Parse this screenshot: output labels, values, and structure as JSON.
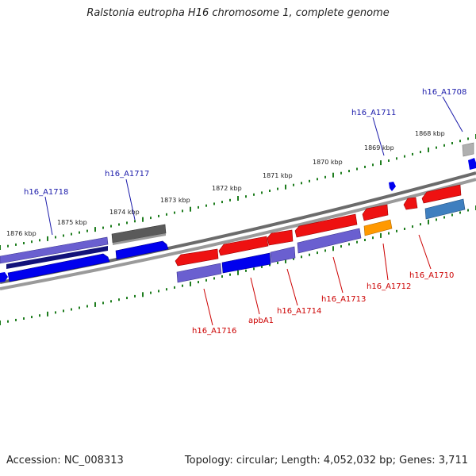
{
  "title": "Ralstonia eutropha H16 chromosome 1, complete genome",
  "footer": {
    "accession": "Accession: NC_008313",
    "summary": "Topology: circular; Length: 4,052,032 bp; Genes: 3,711"
  },
  "colors": {
    "background": "#ffffff",
    "backbone": "#888888",
    "tick": "#1e7d1e",
    "label_forward": "#1a1aaa",
    "label_reverse": "#cc0000",
    "red": "#ee1111",
    "blue": "#0000ee",
    "purple": "#6a5fd0",
    "navy": "#12127a",
    "gray": "#5a5a5a",
    "lightgray": "#b0b0b0",
    "orange": "#ff9900",
    "steelblue": "#3f7fbf"
  },
  "scale_labels": [
    "1876 kbp",
    "1875 kbp",
    "1874 kbp",
    "1873 kbp",
    "1872 kbp",
    "1871 kbp",
    "1870 kbp",
    "1869 kbp",
    "1868 kbp"
  ],
  "gene_labels": {
    "forward": [
      "h16_A1718",
      "h16_A1717",
      "h16_A1711",
      "h16_A1708"
    ],
    "reverse": [
      "h16_A1716",
      "apbA1",
      "h16_A1714",
      "h16_A1713",
      "h16_A1712",
      "h16_A1710"
    ]
  }
}
